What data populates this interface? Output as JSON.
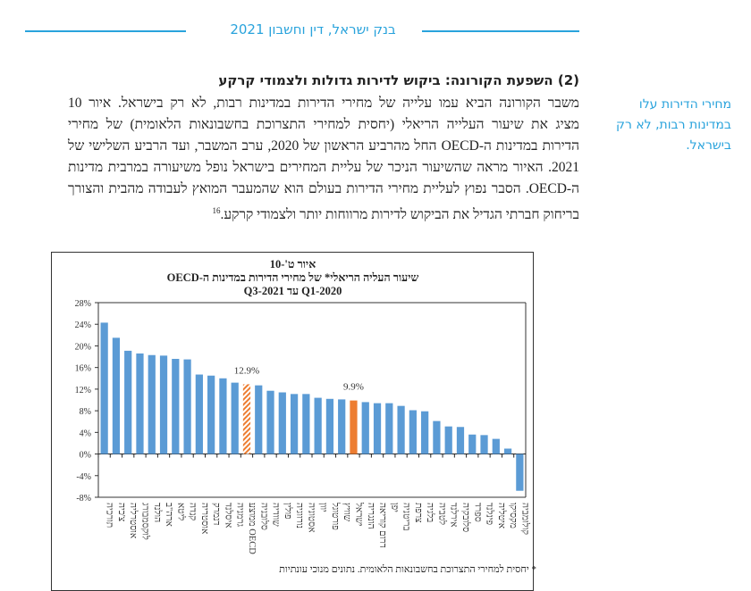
{
  "header": {
    "title": "בנק ישראל, דין וחשבון 2021",
    "accent_color": "#29a3dc"
  },
  "section": {
    "heading": "(2) השפעת הקורונה: ביקוש לדירות גדולות ולצמודי קרקע",
    "paragraph_lines": [
      "משבר הקורונה הביא עמו עלייה של מחירי הדירות במדינות רבות, לא רק בישראל. איור 10",
      "מציג את שיעור העלייה הריאלי (יחסית למחירי התצרוכת בחשבונאות הלאומית) של מחירי",
      "הדירות במדינות ה-OECD החל מהרביע הראשון של 2020, ערב המשבר, ועד הרביע השלישי של",
      "2021. האיור מראה שהשיעור הניכר של עליית המחירים בישראל נופל משיעורה במרבית מדינות",
      "ה-OECD. הסבר נפוץ לעליית מחירי הדירות בעולם הוא שהמעבר המואץ לעבודה מהבית והצורך",
      "בריחוק חברתי הגדיל את הביקוש לדירות מרווחות יותר ולצמודי קרקע."
    ],
    "footnote_ref": "16"
  },
  "margin_note": "מחירי הדירות עלו במדינות רבות, לא רק בישראל.",
  "chart_data": {
    "type": "bar",
    "title_lines": [
      "איור ט'-10",
      "שיעור העליה הריאלי* של מחירי הדירות במדינות ה-OECD",
      "2020-Q1 עד 2021-Q3"
    ],
    "categories": [
      "תורכיה",
      "צ'כיה",
      "אוסטרליה",
      "לוקסמבורג",
      "הולנד",
      "ארה\"ב",
      "ליטא",
      "קנדה",
      "אוסטריה",
      "דנמרק",
      "איסלנד",
      "גרמניה",
      "ממוצע OECD",
      "סלובניה",
      "שוודיה",
      "פולין",
      "נורווגיה",
      "אסטוניה",
      "יוון",
      "פורטוגל",
      "שוויץ",
      "ישראל",
      "הונגריה",
      "דרום קוריאה",
      "יפן",
      "בריטניה",
      "צרפת",
      "בלגיה",
      "לטביה",
      "אירלנד",
      "סלובקיה",
      "ספרד",
      "פינלנד",
      "איטליה",
      "מקסיקו",
      "קולומביה"
    ],
    "values": [
      24.3,
      21.5,
      19.1,
      18.6,
      18.3,
      18.2,
      17.6,
      17.5,
      14.7,
      14.5,
      14.0,
      13.2,
      12.9,
      12.7,
      11.7,
      11.4,
      11.1,
      11.1,
      10.4,
      10.2,
      10.1,
      9.9,
      9.6,
      9.4,
      9.4,
      8.9,
      8.1,
      7.9,
      6.1,
      5.1,
      5.0,
      3.6,
      3.5,
      2.8,
      1.0,
      -6.8
    ],
    "highlight": {
      "ממוצע OECD": {
        "label": "12.9%",
        "style": "hatched"
      },
      "ישראל": {
        "label": "9.9%",
        "style": "solid"
      }
    },
    "ylim": [
      -8,
      28
    ],
    "yticks": [
      "-8%",
      "-4%",
      "0%",
      "4%",
      "8%",
      "12%",
      "16%",
      "20%",
      "24%",
      "28%"
    ],
    "colors": {
      "bar": "#5b9bd5",
      "highlight": "#ed7d31"
    },
    "footnote": "* יחסית למחירי התצרוכת בחשבונאות הלאומית. נתונים מנוכי עונתיות"
  }
}
